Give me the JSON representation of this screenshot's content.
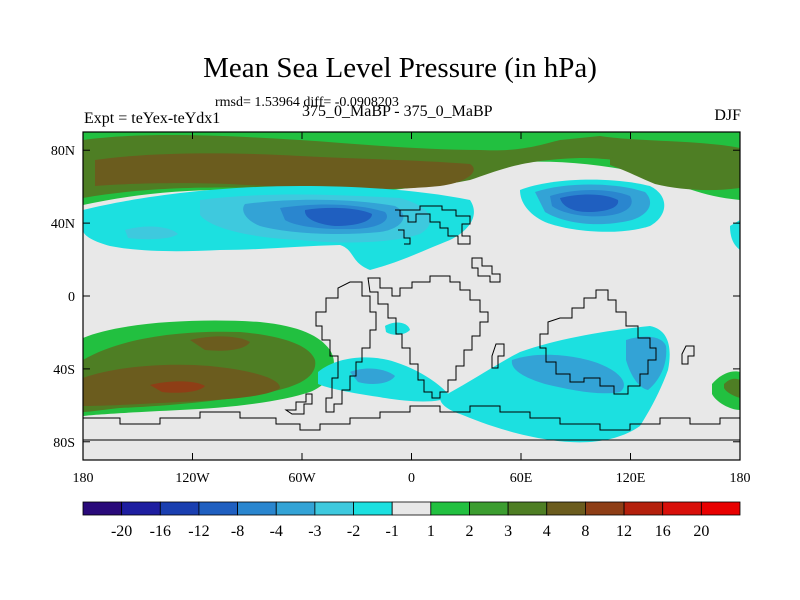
{
  "title": "Mean Sea Level Pressure (in hPa)",
  "stats": "rmsd= 1.53964 diff= -0.0908203",
  "experiment": "Expt = teYex-teYdx1",
  "case": "375_0_MaBP - 375_0_MaBP",
  "season": "DJF",
  "map": {
    "lon_range": [
      -180,
      180
    ],
    "lat_range": [
      -90,
      90
    ],
    "lat_ticks": [
      {
        "value": 80,
        "label": "80N"
      },
      {
        "value": 40,
        "label": "40N"
      },
      {
        "value": 0,
        "label": "0"
      },
      {
        "value": -40,
        "label": "40S"
      },
      {
        "value": -80,
        "label": "80S"
      }
    ],
    "lon_ticks": [
      {
        "value": -180,
        "label": "180"
      },
      {
        "value": -120,
        "label": "120W"
      },
      {
        "value": -60,
        "label": "60W"
      },
      {
        "value": 0,
        "label": "0"
      },
      {
        "value": 60,
        "label": "60E"
      },
      {
        "value": 120,
        "label": "120E"
      },
      {
        "value": 180,
        "label": "180"
      }
    ]
  },
  "colorbar": {
    "labels": [
      "-20",
      "-16",
      "-12",
      "-8",
      "-4",
      "-3",
      "-2",
      "-1",
      "1",
      "2",
      "3",
      "4",
      "8",
      "12",
      "16",
      "20"
    ],
    "colors": [
      "#2a0a7a",
      "#1e1ea0",
      "#1a3fb0",
      "#1f5fc0",
      "#2a86cf",
      "#33a3d6",
      "#3ec9de",
      "#1ce0e0",
      "#e8e8e8",
      "#22c040",
      "#3c9d30",
      "#4e7e24",
      "#6b5c1e",
      "#8e3e16",
      "#b4200c",
      "#d8100a",
      "#e80000"
    ]
  },
  "colors": {
    "neutral": "#e8e8e8",
    "light_green": "#22c040",
    "mid_green": "#3c9d30",
    "olive": "#4e7e24",
    "brown": "#6b5c1e",
    "cyan_light": "#1ce0e0",
    "cyan_mid": "#3ec9de",
    "blue_mid": "#33a3d6",
    "blue": "#2a86cf",
    "blue_dark": "#1f5fc0"
  }
}
